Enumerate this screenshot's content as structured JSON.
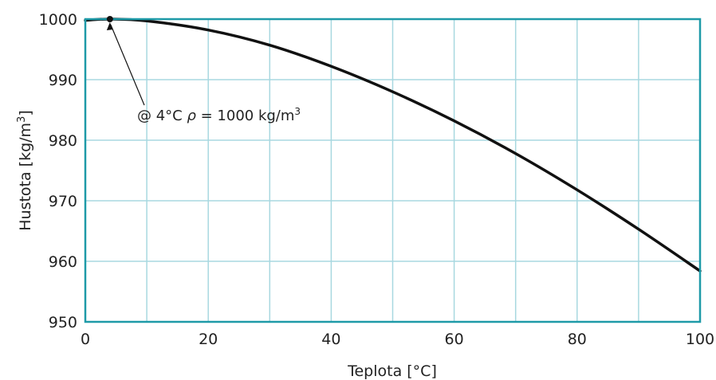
{
  "chart_data": {
    "type": "line",
    "title": "",
    "xlabel": "Teplota [°C]",
    "ylabel": "Hustota [kg/m",
    "ylabel_sup": "3",
    "ylabel_close": "]",
    "xlim": [
      0,
      100
    ],
    "ylim": [
      950,
      1000
    ],
    "x_ticks": [
      0,
      20,
      40,
      60,
      80,
      100
    ],
    "y_ticks": [
      950,
      960,
      970,
      980,
      990,
      1000
    ],
    "x_tick_labels": [
      "0",
      "20",
      "40",
      "60",
      "80",
      "100"
    ],
    "y_tick_labels": [
      "950",
      "960",
      "970",
      "980",
      "990",
      "1000"
    ],
    "x_grid_step": 10,
    "y_grid_step": 10,
    "grid": true,
    "colors": {
      "frame": "#1e9aa8",
      "grid": "#a8d8e0",
      "line": "#111111"
    },
    "series": [
      {
        "x": [
          0,
          4,
          10,
          20,
          30,
          40,
          50,
          60,
          70,
          80,
          90,
          100
        ],
        "y": [
          999.8,
          1000.0,
          999.7,
          998.2,
          995.7,
          992.2,
          988.0,
          983.2,
          977.8,
          971.8,
          965.3,
          958.4
        ]
      }
    ],
    "annotation": {
      "point": {
        "x": 4,
        "y": 1000
      },
      "text_prefix": "@ 4°C ",
      "rho": "ρ",
      "text_mid": " = 1000 kg/m",
      "text_sup": "3"
    }
  }
}
